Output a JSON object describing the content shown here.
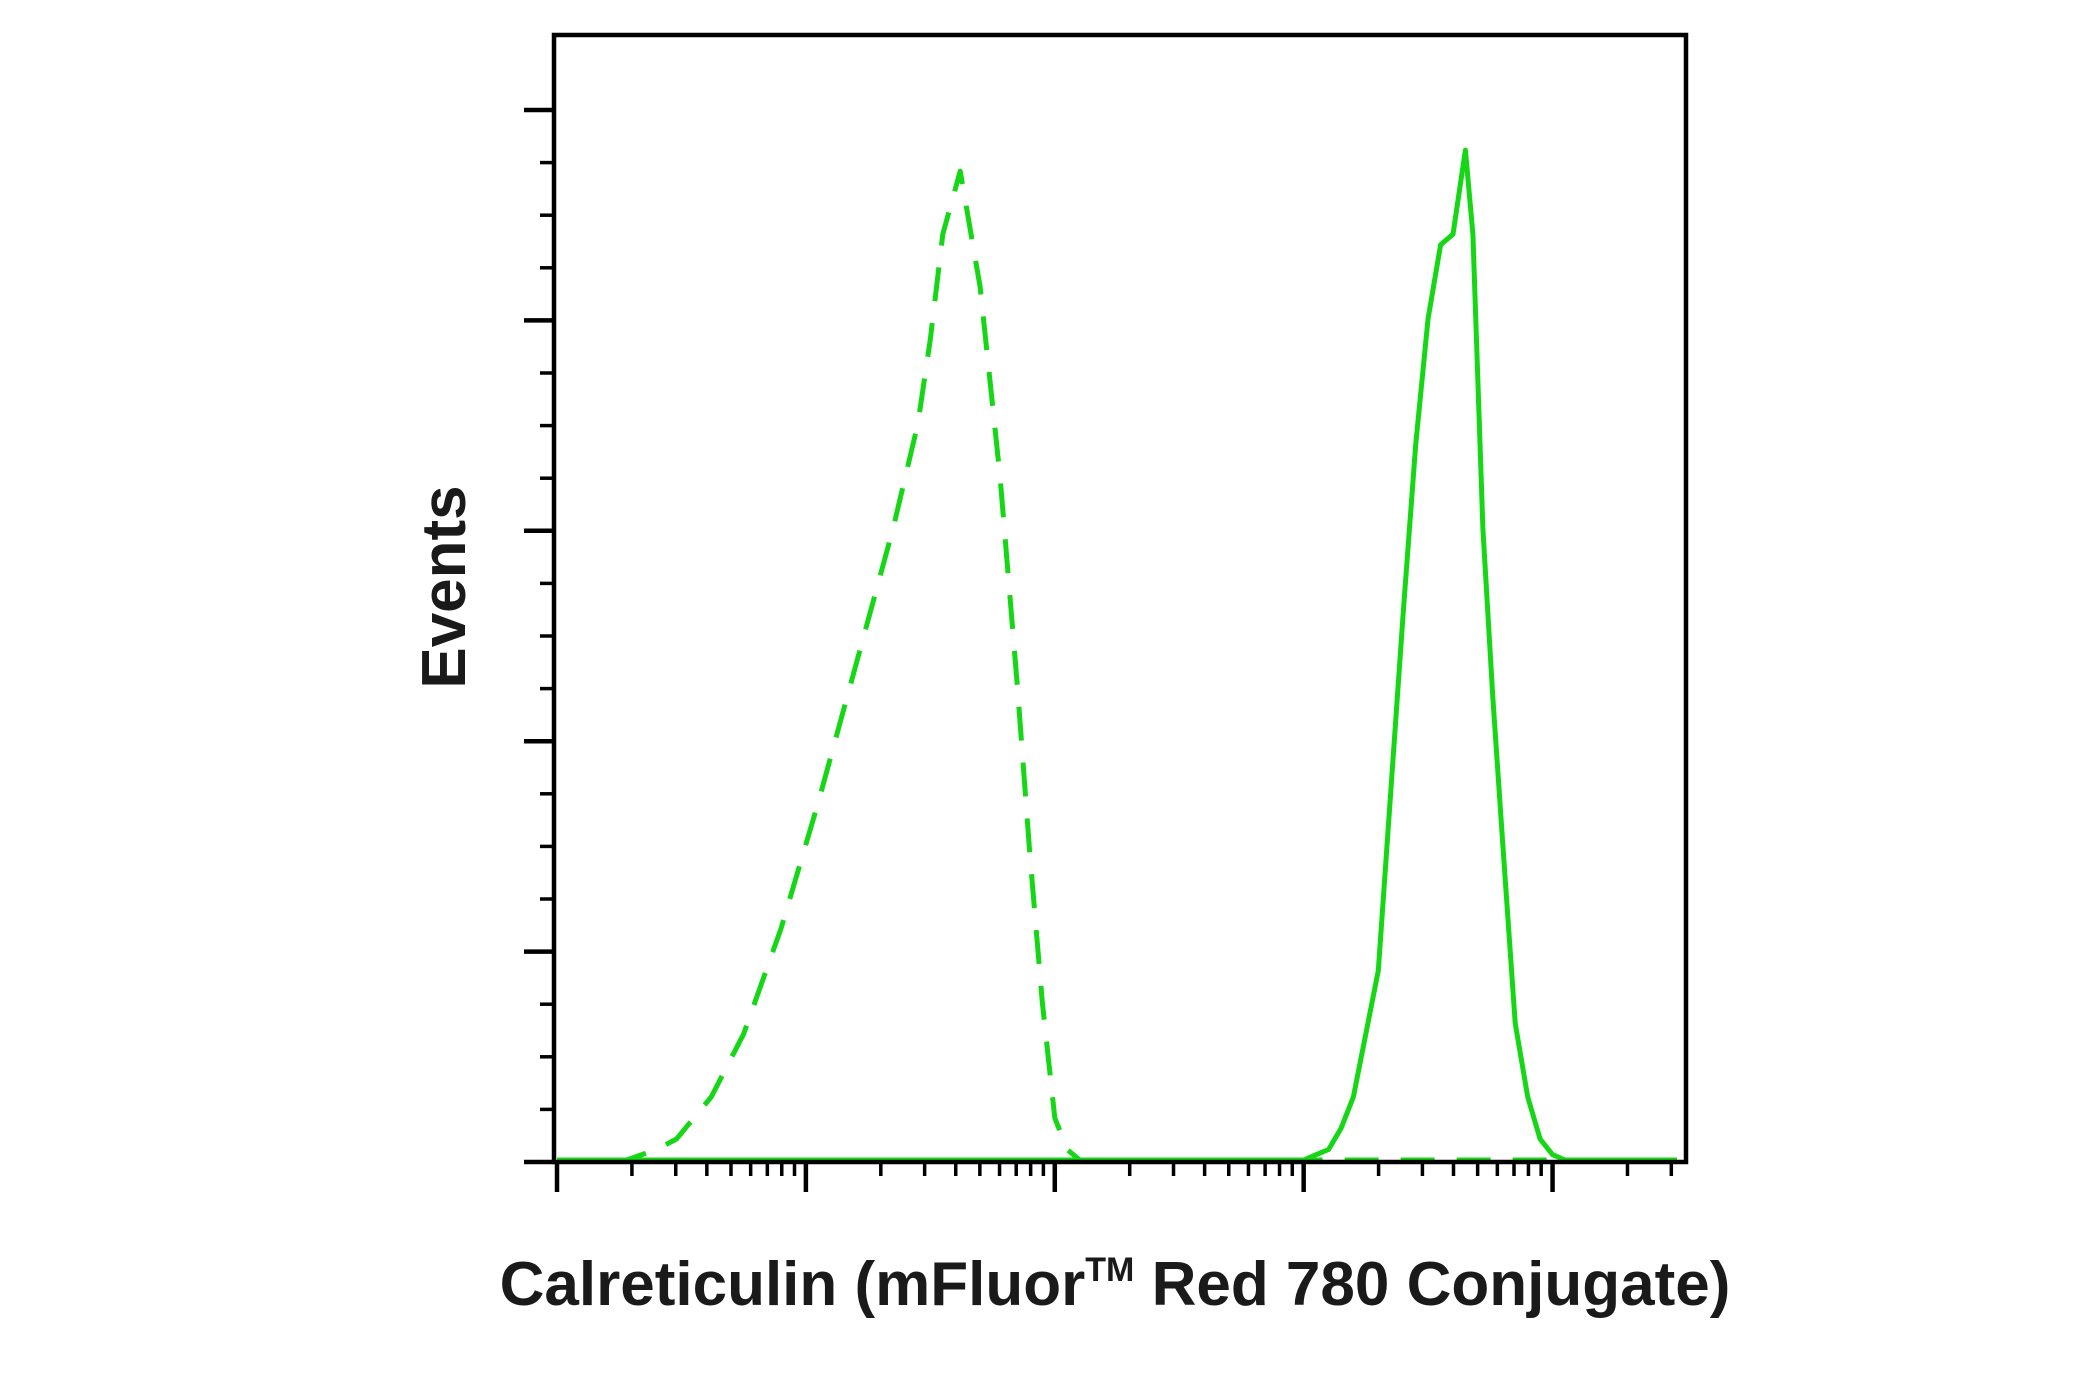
{
  "chart_data": {
    "type": "line",
    "title": "",
    "xlabel": "Calreticulin (mFluor",
    "xlabel_superscript": "TM",
    "xlabel_suffix": " Red 780 Conjugate)",
    "ylabel": "Events",
    "x_scale": "log",
    "x_axis": {
      "decades": 4.5
    },
    "ylim": [
      0,
      1
    ],
    "grid": false,
    "legend": "none",
    "colors": {
      "series": "#16d716",
      "axis": "#000000",
      "text": "#1a1a1a"
    },
    "series": [
      {
        "style": "dashed",
        "x": [
          0.0,
          0.15,
          0.28,
          0.4,
          0.48,
          0.55,
          0.62,
          0.75,
          0.9,
          1.05,
          1.2,
          1.35,
          1.45,
          1.5,
          1.55,
          1.62,
          1.7,
          1.78,
          1.85,
          1.9,
          1.95,
          2.0,
          2.05,
          2.1,
          2.2,
          2.3,
          2.4,
          2.55,
          2.7,
          2.9,
          3.1,
          3.3,
          3.5,
          3.7,
          3.9,
          4.1,
          4.3,
          4.5
        ],
        "y": [
          0.0,
          0.0,
          0.0,
          0.01,
          0.02,
          0.04,
          0.06,
          0.12,
          0.22,
          0.34,
          0.47,
          0.6,
          0.7,
          0.78,
          0.88,
          0.94,
          0.83,
          0.65,
          0.45,
          0.29,
          0.15,
          0.04,
          0.01,
          0.0,
          0.0,
          0.0,
          0.0,
          0.0,
          0.0,
          0.0,
          0.0,
          0.0,
          0.0,
          0.0,
          0.0,
          0.0,
          0.0,
          0.0
        ]
      },
      {
        "style": "solid",
        "x": [
          0.0,
          0.5,
          1.0,
          1.5,
          2.0,
          2.5,
          3.0,
          3.05,
          3.1,
          3.15,
          3.2,
          3.3,
          3.4,
          3.45,
          3.5,
          3.55,
          3.6,
          3.65,
          3.68,
          3.72,
          3.76,
          3.8,
          3.85,
          3.9,
          3.95,
          4.0,
          4.05,
          4.1,
          4.15,
          4.2,
          4.3,
          4.5
        ],
        "y": [
          0.0,
          0.0,
          0.0,
          0.0,
          0.0,
          0.0,
          0.0,
          0.005,
          0.01,
          0.03,
          0.06,
          0.18,
          0.52,
          0.68,
          0.8,
          0.87,
          0.88,
          0.96,
          0.88,
          0.6,
          0.44,
          0.3,
          0.13,
          0.06,
          0.02,
          0.005,
          0.0,
          0.0,
          0.0,
          0.0,
          0.0,
          0.0
        ]
      }
    ]
  }
}
